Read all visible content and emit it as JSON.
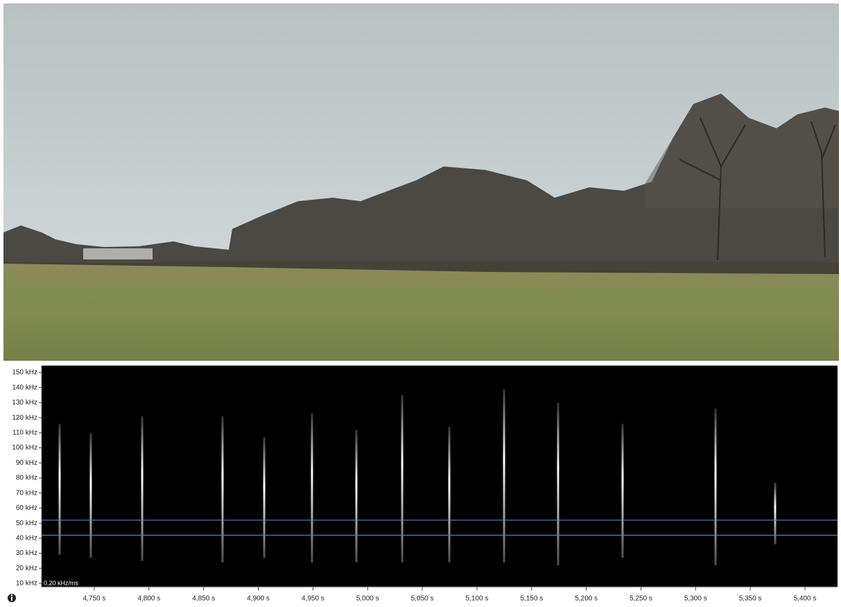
{
  "chart_data": {
    "type": "spectrogram",
    "annotation": "0,20 kHz/ms",
    "ylim": [
      7.7,
      154.6
    ],
    "yticks": [
      {
        "value": 10,
        "label": "10 kHz"
      },
      {
        "value": 20,
        "label": "20 kHz"
      },
      {
        "value": 30,
        "label": "30 kHz"
      },
      {
        "value": 40,
        "label": "40 kHz"
      },
      {
        "value": 50,
        "label": "50 kHz"
      },
      {
        "value": 60,
        "label": "60 kHz"
      },
      {
        "value": 70,
        "label": "70 kHz"
      },
      {
        "value": 80,
        "label": "80 kHz"
      },
      {
        "value": 90,
        "label": "90 kHz"
      },
      {
        "value": 100,
        "label": "100 kHz"
      },
      {
        "value": 110,
        "label": "110 kHz"
      },
      {
        "value": 120,
        "label": "120 kHz"
      },
      {
        "value": 130,
        "label": "130 kHz"
      },
      {
        "value": 140,
        "label": "140 kHz"
      },
      {
        "value": 150,
        "label": "150 kHz"
      }
    ],
    "xlim": [
      4701.8,
      5429.8
    ],
    "xticks": [
      {
        "value": 4750,
        "label": "4,750 s"
      },
      {
        "value": 4800,
        "label": "4,800 s"
      },
      {
        "value": 4850,
        "label": "4,850 s"
      },
      {
        "value": 4900,
        "label": "4,900 s"
      },
      {
        "value": 4950,
        "label": "4,950 s"
      },
      {
        "value": 5000,
        "label": "5,000 s"
      },
      {
        "value": 5050,
        "label": "5,050 s"
      },
      {
        "value": 5100,
        "label": "5,100 s"
      },
      {
        "value": 5150,
        "label": "5,150 s"
      },
      {
        "value": 5200,
        "label": "5,200 s"
      },
      {
        "value": 5250,
        "label": "5,250 s"
      },
      {
        "value": 5300,
        "label": "5,300 s"
      },
      {
        "value": 5350,
        "label": "5,350 s"
      },
      {
        "value": 5400,
        "label": "5,400 s"
      }
    ],
    "marker_lines": [
      52,
      42
    ],
    "marker_color": "#5b7fb5",
    "call_color": "#ffffff",
    "calls": {
      "x": [
        4718.3,
        4746.8,
        4793.8,
        4867.3,
        4905.4,
        4949.1,
        4989.7,
        5031.6,
        5074.7,
        5124.8,
        5174.2,
        5233.2,
        5318.2,
        5372.7
      ],
      "high": [
        116,
        110,
        121,
        121,
        107,
        123,
        112,
        135,
        114,
        139,
        130,
        116,
        126,
        77
      ],
      "low": [
        29,
        27,
        25,
        24,
        27,
        24,
        24,
        24,
        24,
        24,
        22,
        27,
        22,
        36
      ]
    }
  }
}
